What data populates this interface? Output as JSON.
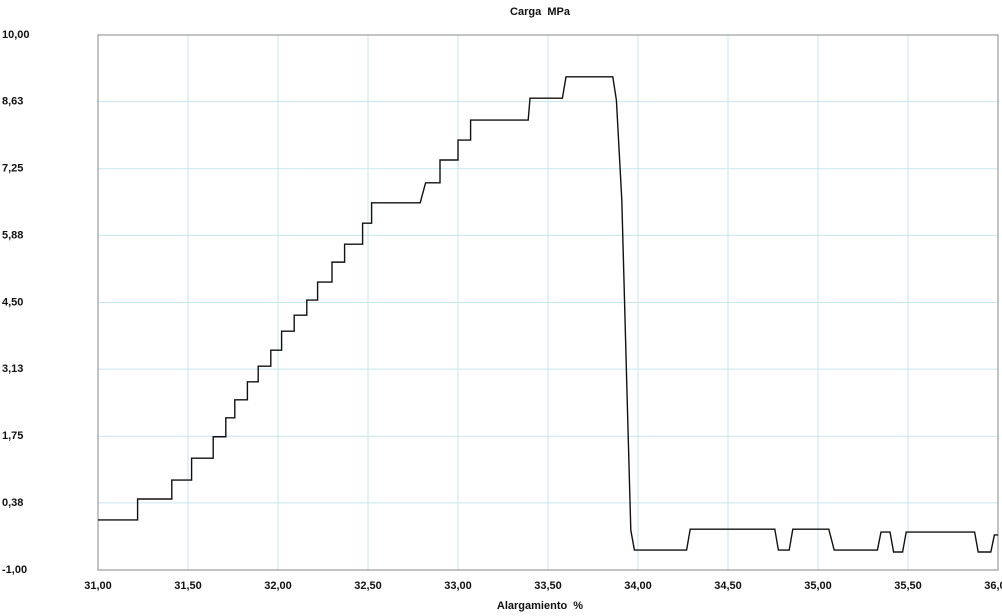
{
  "chart_data": {
    "type": "line",
    "title": "Carga  MPa",
    "x_label": "Alargamiento  %",
    "x": [
      31.0,
      31.22,
      31.22,
      31.41,
      31.41,
      31.52,
      31.52,
      31.64,
      31.64,
      31.71,
      31.71,
      31.76,
      31.76,
      31.83,
      31.83,
      31.89,
      31.89,
      31.96,
      31.96,
      32.02,
      32.02,
      32.09,
      32.09,
      32.16,
      32.16,
      32.22,
      32.22,
      32.3,
      32.3,
      32.37,
      32.37,
      32.47,
      32.47,
      32.52,
      32.52,
      32.79,
      32.82,
      32.9,
      32.9,
      33.0,
      33.0,
      33.07,
      33.07,
      33.39,
      33.4,
      33.58,
      33.6,
      33.86,
      33.88,
      33.91,
      33.94,
      33.96,
      33.98,
      34.27,
      34.29,
      34.76,
      34.78,
      34.84,
      34.86,
      35.06,
      35.09,
      35.33,
      35.35,
      35.4,
      35.42,
      35.47,
      35.49,
      35.87,
      35.89,
      35.96,
      35.98,
      36.0
    ],
    "series": [
      {
        "name": "Carga",
        "color": "#111111",
        "values": [
          0.03,
          0.03,
          0.46,
          0.46,
          0.85,
          0.85,
          1.3,
          1.3,
          1.74,
          1.74,
          2.13,
          2.13,
          2.5,
          2.5,
          2.87,
          2.87,
          3.19,
          3.19,
          3.52,
          3.52,
          3.91,
          3.91,
          4.24,
          4.24,
          4.55,
          4.55,
          4.92,
          4.92,
          5.33,
          5.33,
          5.7,
          5.7,
          6.13,
          6.13,
          6.55,
          6.55,
          6.96,
          6.96,
          7.43,
          7.43,
          7.84,
          7.84,
          8.25,
          8.25,
          8.7,
          8.7,
          9.14,
          9.14,
          8.66,
          6.61,
          2.5,
          -0.18,
          -0.59,
          -0.59,
          -0.16,
          -0.16,
          -0.59,
          -0.59,
          -0.16,
          -0.16,
          -0.59,
          -0.59,
          -0.22,
          -0.22,
          -0.63,
          -0.63,
          -0.22,
          -0.22,
          -0.63,
          -0.63,
          -0.28,
          -0.28
        ]
      }
    ],
    "xlim": [
      31,
      36
    ],
    "xticks": [
      {
        "value": 31,
        "label": "31,00"
      },
      {
        "value": 31.5,
        "label": "31,50"
      },
      {
        "value": 32,
        "label": "32,00"
      },
      {
        "value": 32.5,
        "label": "32,50"
      },
      {
        "value": 33,
        "label": "33,00"
      },
      {
        "value": 33.5,
        "label": "33,50"
      },
      {
        "value": 34,
        "label": "34,00"
      },
      {
        "value": 34.5,
        "label": "34,50"
      },
      {
        "value": 35,
        "label": "35,00"
      },
      {
        "value": 35.5,
        "label": "35,50"
      },
      {
        "value": 36,
        "label": "36,00"
      }
    ],
    "ylim": [
      -1,
      10
    ],
    "yticks": [
      {
        "value": -1,
        "label": "-1,00"
      },
      {
        "value": 0.38,
        "label": "0,38"
      },
      {
        "value": 1.75,
        "label": "1,75"
      },
      {
        "value": 3.13,
        "label": "3,13"
      },
      {
        "value": 4.5,
        "label": "4,50"
      },
      {
        "value": 5.88,
        "label": "5,88"
      },
      {
        "value": 7.25,
        "label": "7,25"
      },
      {
        "value": 8.63,
        "label": "8,63"
      },
      {
        "value": 10,
        "label": "10,00"
      }
    ],
    "grid": true,
    "grid_color": "#c8e6ee"
  }
}
